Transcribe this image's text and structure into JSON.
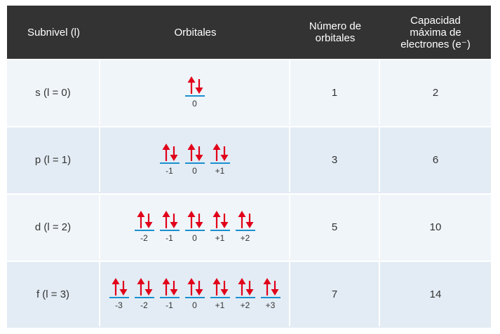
{
  "header": {
    "col1": "Subnivel (l)",
    "col2": "Orbitales",
    "col3_line1": "Número de",
    "col3_line2": "orbitales",
    "col4_line1": "Capacidad",
    "col4_line2": "máxima de",
    "col4_line3": "electrones (e⁻)"
  },
  "colors": {
    "header_bg": "#333333",
    "row_light": "#f0f5f9",
    "row_dark": "#e3ecf4",
    "arrow": "#e1001a",
    "orbital_line": "#1a8fd0"
  },
  "rows": [
    {
      "subnivel": "s (l = 0)",
      "orbitals": [
        "0"
      ],
      "numero": "1",
      "capacidad": "2"
    },
    {
      "subnivel": "p (l = 1)",
      "orbitals": [
        "-1",
        "0",
        "+1"
      ],
      "numero": "3",
      "capacidad": "6"
    },
    {
      "subnivel": "d (l = 2)",
      "orbitals": [
        "-2",
        "-1",
        "0",
        "+1",
        "+2"
      ],
      "numero": "5",
      "capacidad": "10"
    },
    {
      "subnivel": "f (l = 3)",
      "orbitals": [
        "-3",
        "-2",
        "-1",
        "0",
        "+1",
        "+2",
        "+3"
      ],
      "numero": "7",
      "capacidad": "14"
    }
  ]
}
